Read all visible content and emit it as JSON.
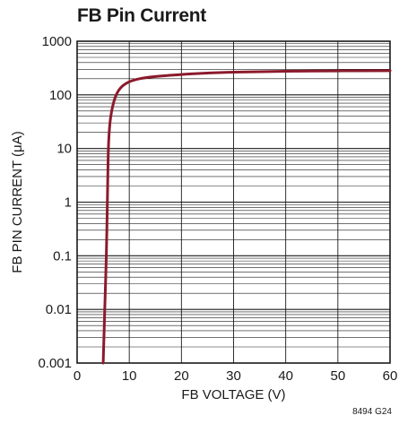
{
  "chart_data": {
    "type": "line",
    "title": "FB Pin Current",
    "xlabel": "FB VOLTAGE (V)",
    "ylabel": "FB PIN CURRENT (μA)",
    "y_scale": "log",
    "xlim": [
      0,
      60
    ],
    "ylim": [
      0.001,
      1000
    ],
    "x_ticks": [
      "0",
      "10",
      "20",
      "30",
      "40",
      "50",
      "60"
    ],
    "y_ticks": [
      "0.001",
      "0.01",
      "0.1",
      "1",
      "10",
      "100",
      "1000"
    ],
    "grid": true,
    "line_color": "#8b1a2b",
    "series": [
      {
        "x": [
          5.0,
          5.3,
          5.6,
          5.8,
          6.0,
          6.3,
          6.8,
          7.5,
          8.5,
          10,
          12,
          15,
          20,
          25,
          30,
          40,
          50,
          60
        ],
        "y": [
          0.001,
          0.01,
          0.1,
          1,
          10,
          30,
          60,
          100,
          140,
          175,
          200,
          220,
          240,
          255,
          265,
          275,
          280,
          282
        ]
      }
    ],
    "footnote": "8494 G24"
  }
}
